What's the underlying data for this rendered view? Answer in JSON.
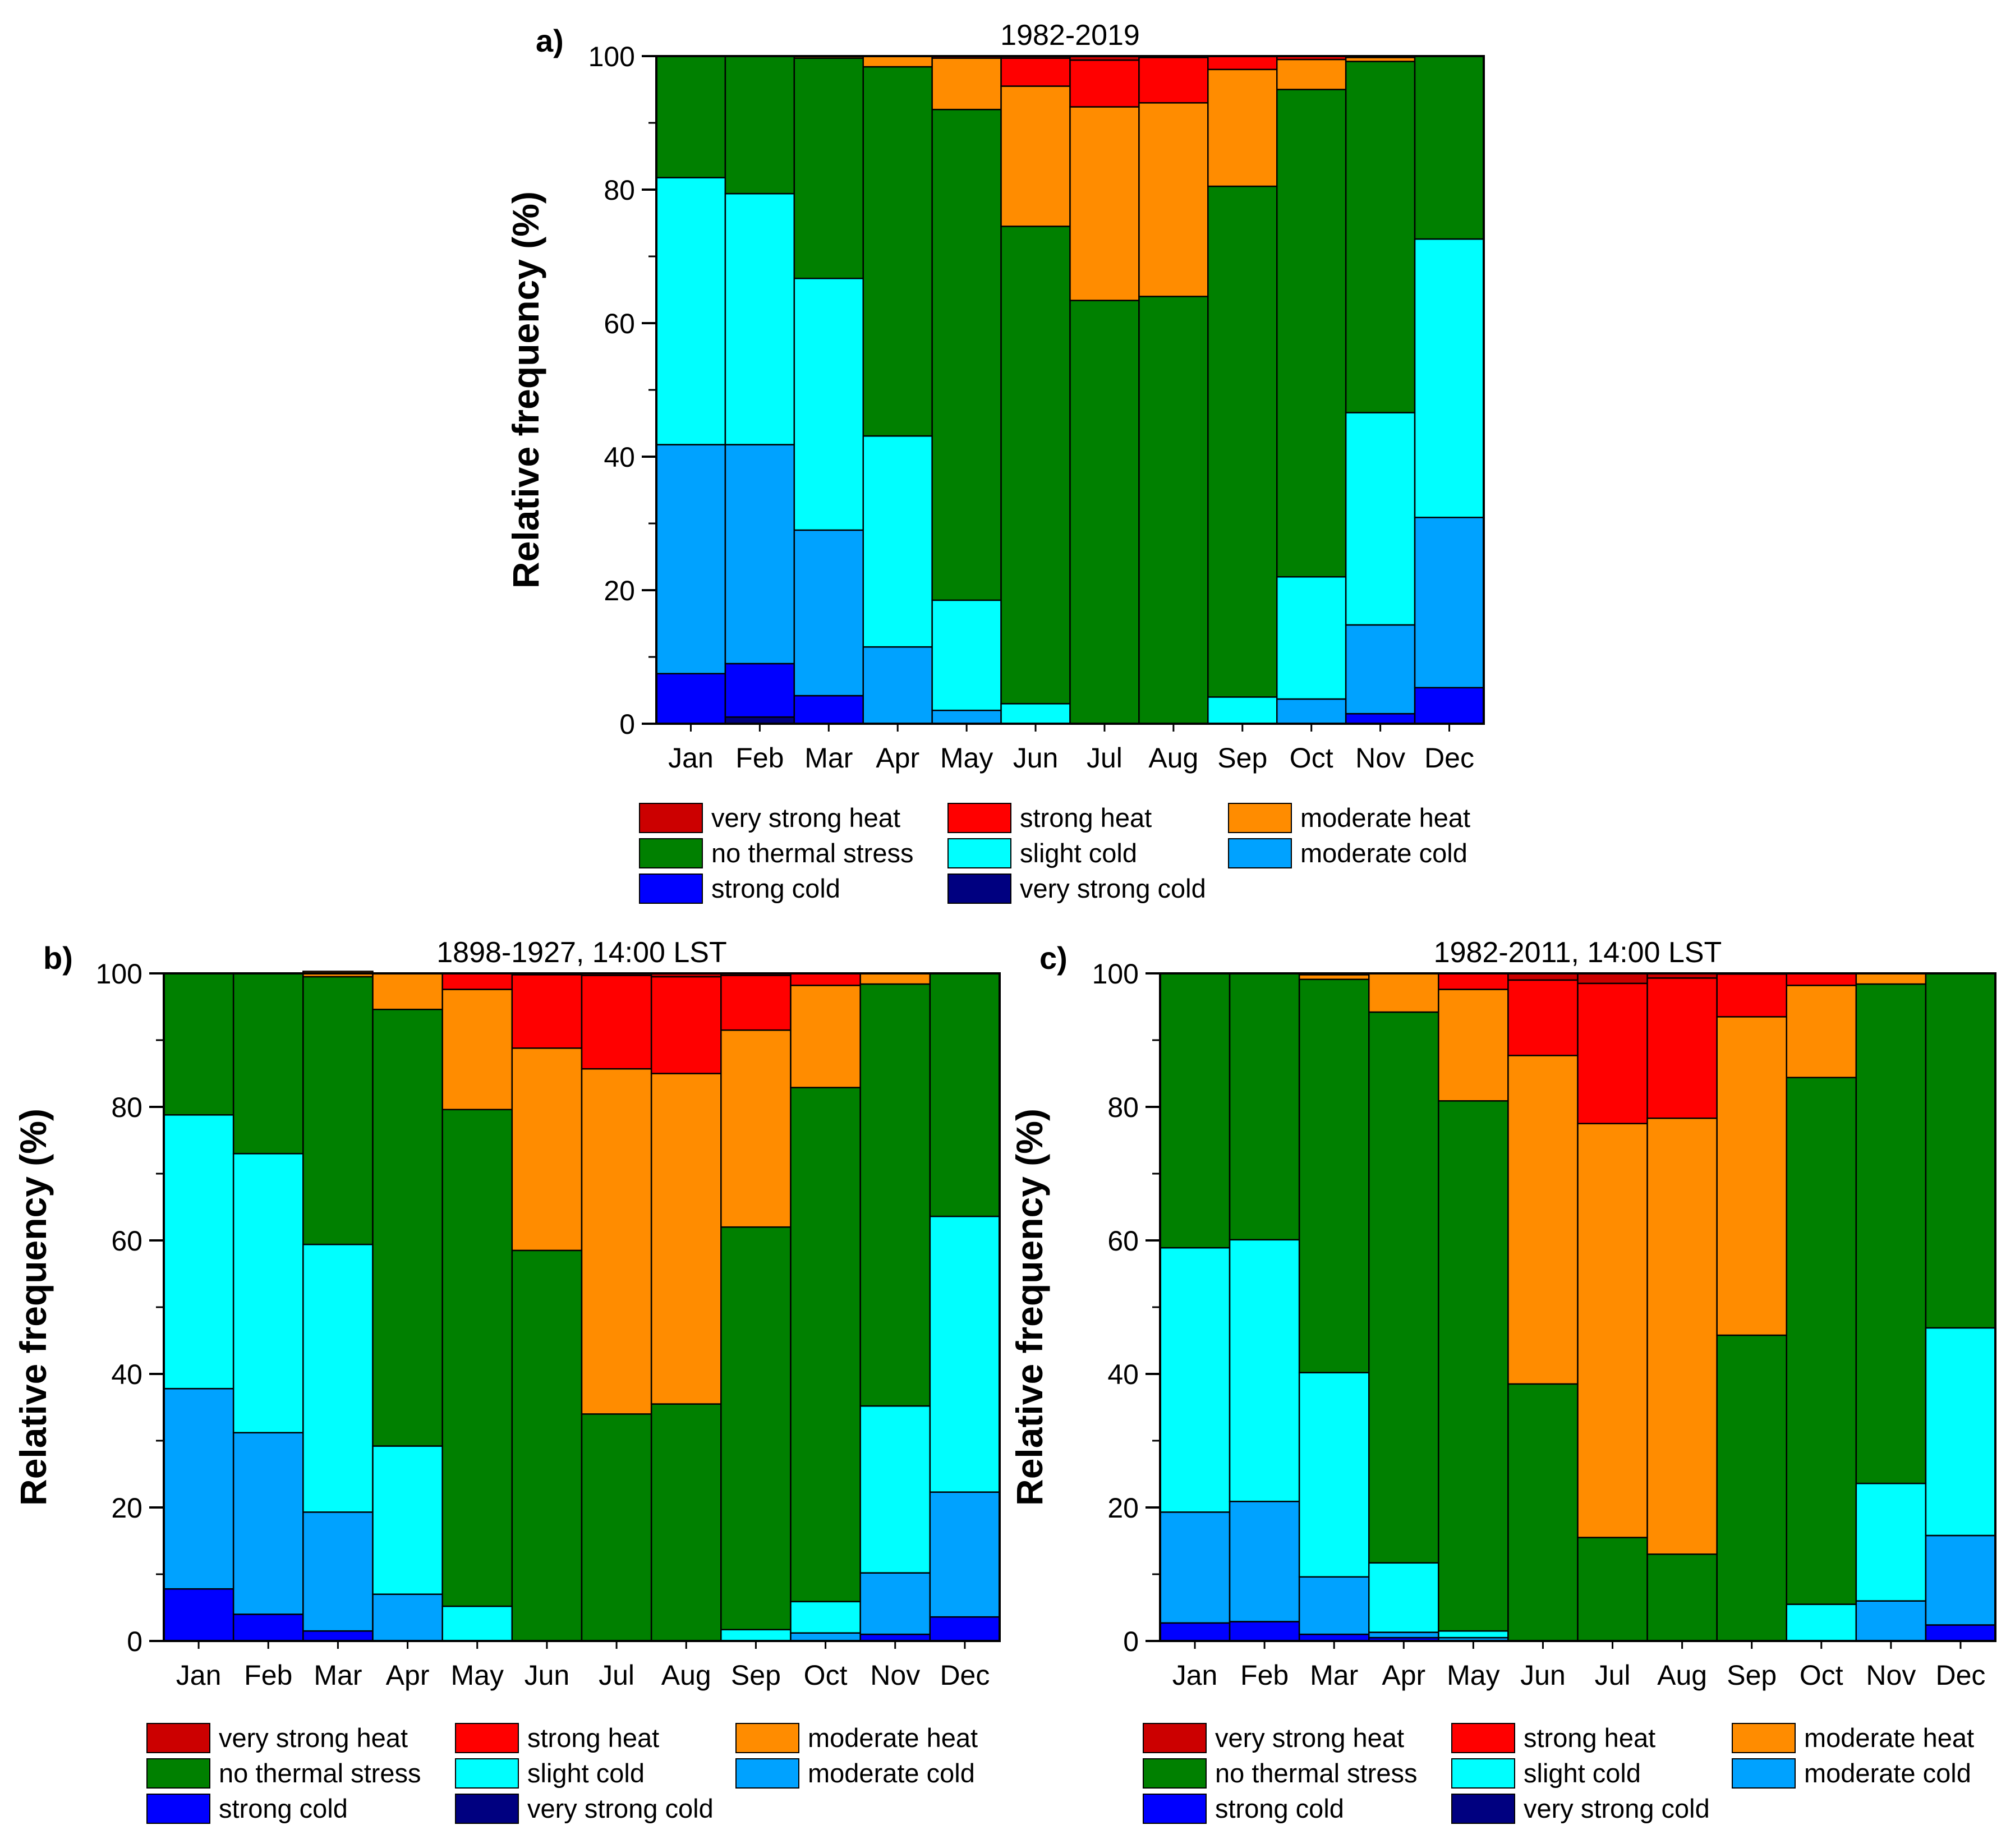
{
  "legend": [
    {
      "key": "very_strong_heat",
      "label": "very strong heat",
      "color": "#cc0000"
    },
    {
      "key": "strong_heat",
      "label": "strong heat",
      "color": "#ff0000"
    },
    {
      "key": "moderate_heat",
      "label": "moderate heat",
      "color": "#ff8c00"
    },
    {
      "key": "no_thermal_stress",
      "label": "no thermal stress",
      "color": "#008000"
    },
    {
      "key": "slight_cold",
      "label": "slight cold",
      "color": "#00ffff"
    },
    {
      "key": "moderate_cold",
      "label": "moderate cold",
      "color": "#00a2ff"
    },
    {
      "key": "strong_cold",
      "label": "strong cold",
      "color": "#0000ff"
    },
    {
      "key": "very_strong_cold",
      "label": "very strong cold",
      "color": "#000080"
    }
  ],
  "chart_data": [
    {
      "type": "bar",
      "stacked": true,
      "panel_label": "a)",
      "title": "1982-2019",
      "ylabel": "Relative frequency (%)",
      "xlabel": "",
      "ylim": [
        0,
        100
      ],
      "yticks": [
        0,
        20,
        40,
        60,
        80,
        100
      ],
      "categories": [
        "Jan",
        "Feb",
        "Mar",
        "Apr",
        "May",
        "Jun",
        "Jul",
        "Aug",
        "Sep",
        "Oct",
        "Nov",
        "Dec"
      ],
      "series": [
        {
          "name": "very strong cold",
          "values": [
            0,
            1,
            0,
            0,
            0,
            0,
            0,
            0,
            0,
            0,
            0,
            0
          ]
        },
        {
          "name": "strong cold",
          "values": [
            7.5,
            8,
            4.2,
            0,
            0,
            0,
            0,
            0,
            0,
            0,
            1.5,
            5.4
          ]
        },
        {
          "name": "moderate cold",
          "values": [
            34.3,
            32.8,
            24.8,
            11.5,
            2,
            0,
            0,
            0,
            0,
            3.7,
            13.3,
            25.5
          ]
        },
        {
          "name": "slight cold",
          "values": [
            40,
            37.6,
            37.7,
            31.6,
            16.5,
            3,
            0,
            0,
            4,
            18.3,
            31.8,
            41.7
          ]
        },
        {
          "name": "no thermal stress",
          "values": [
            18.2,
            20.6,
            33,
            55.3,
            73.5,
            71.5,
            63.4,
            64,
            76.5,
            73,
            52.6,
            27.4
          ]
        },
        {
          "name": "moderate heat",
          "values": [
            0,
            0,
            0.3,
            1.6,
            7.7,
            21,
            29,
            29,
            17.5,
            4.5,
            0.6,
            0
          ]
        },
        {
          "name": "strong heat",
          "values": [
            0,
            0,
            0,
            0,
            0.3,
            4.2,
            7,
            6.8,
            2,
            0.5,
            0.2,
            0
          ]
        },
        {
          "name": "very strong heat",
          "values": [
            0,
            0,
            0,
            0,
            0,
            0.3,
            0.6,
            0.2,
            0,
            0,
            0,
            0
          ]
        }
      ]
    },
    {
      "type": "bar",
      "stacked": true,
      "panel_label": "b)",
      "title": "1898-1927, 14:00 LST",
      "ylabel": "Relative frequency (%)",
      "xlabel": "",
      "ylim": [
        0,
        100
      ],
      "yticks": [
        0,
        20,
        40,
        60,
        80,
        100
      ],
      "categories": [
        "Jan",
        "Feb",
        "Mar",
        "Apr",
        "May",
        "Jun",
        "Jul",
        "Aug",
        "Sep",
        "Oct",
        "Nov",
        "Dec"
      ],
      "series": [
        {
          "name": "very strong cold",
          "values": [
            0,
            0,
            0,
            0,
            0,
            0,
            0,
            0,
            0,
            0,
            0,
            0
          ]
        },
        {
          "name": "strong cold",
          "values": [
            7.8,
            4,
            1.5,
            0,
            0,
            0,
            0,
            0,
            0,
            0,
            1,
            3.6
          ]
        },
        {
          "name": "moderate cold",
          "values": [
            30,
            27.2,
            17.8,
            7,
            0,
            0,
            0,
            0,
            0,
            1.2,
            9.2,
            18.7
          ]
        },
        {
          "name": "slight cold",
          "values": [
            41,
            41.8,
            40.1,
            22.2,
            5.2,
            0,
            0,
            0,
            1.7,
            4.7,
            25,
            41.3
          ]
        },
        {
          "name": "no thermal stress",
          "values": [
            21.2,
            27,
            40.1,
            65.4,
            74.4,
            58.5,
            34,
            35.5,
            60.3,
            77,
            63.2,
            36.4
          ]
        },
        {
          "name": "moderate heat",
          "values": [
            0,
            0,
            0.8,
            5.4,
            18,
            30.3,
            51.7,
            49.5,
            29.5,
            15.3,
            1.6,
            0
          ]
        },
        {
          "name": "strong heat",
          "values": [
            0,
            0,
            0,
            0,
            2.4,
            11,
            14,
            14.5,
            8.2,
            1.8,
            0,
            0
          ]
        },
        {
          "name": "very strong heat",
          "values": [
            0,
            0,
            0,
            0,
            0,
            0.2,
            0.3,
            0.5,
            0.3,
            0,
            0,
            0
          ]
        }
      ]
    },
    {
      "type": "bar",
      "stacked": true,
      "panel_label": "c)",
      "title": "1982-2011, 14:00 LST",
      "ylabel": "Relative frequency (%)",
      "xlabel": "",
      "ylim": [
        0,
        100
      ],
      "yticks": [
        0,
        20,
        40,
        60,
        80,
        100
      ],
      "categories": [
        "Jan",
        "Feb",
        "Mar",
        "Apr",
        "May",
        "Jun",
        "Jul",
        "Aug",
        "Sep",
        "Oct",
        "Nov",
        "Dec"
      ],
      "series": [
        {
          "name": "very strong cold",
          "values": [
            0,
            0,
            0,
            0,
            0,
            0,
            0,
            0,
            0,
            0,
            0,
            0
          ]
        },
        {
          "name": "strong cold",
          "values": [
            2.7,
            2.9,
            1,
            0.5,
            0,
            0,
            0,
            0,
            0,
            0,
            0,
            2.4
          ]
        },
        {
          "name": "moderate cold",
          "values": [
            16.6,
            18,
            8.6,
            0.8,
            0.5,
            0,
            0,
            0,
            0,
            0,
            6,
            13.4
          ]
        },
        {
          "name": "slight cold",
          "values": [
            39.6,
            39.2,
            30.6,
            10.4,
            1,
            0,
            0,
            0,
            0,
            5.5,
            17.6,
            31.1
          ]
        },
        {
          "name": "no thermal stress",
          "values": [
            41.1,
            39.9,
            58.9,
            82.5,
            79.4,
            38.5,
            15.5,
            13,
            45.8,
            78.9,
            74.8,
            53.1
          ]
        },
        {
          "name": "moderate heat",
          "values": [
            0,
            0,
            0.7,
            5.8,
            16.7,
            49.2,
            62,
            65.3,
            47.7,
            13.8,
            1.6,
            0
          ]
        },
        {
          "name": "strong heat",
          "values": [
            0,
            0,
            0.2,
            0,
            2.4,
            11.3,
            21,
            21,
            6.4,
            1.8,
            0,
            0
          ]
        },
        {
          "name": "very strong heat",
          "values": [
            0,
            0,
            0,
            0,
            0,
            1,
            1.5,
            0.7,
            0.1,
            0,
            0,
            0
          ]
        }
      ]
    }
  ]
}
